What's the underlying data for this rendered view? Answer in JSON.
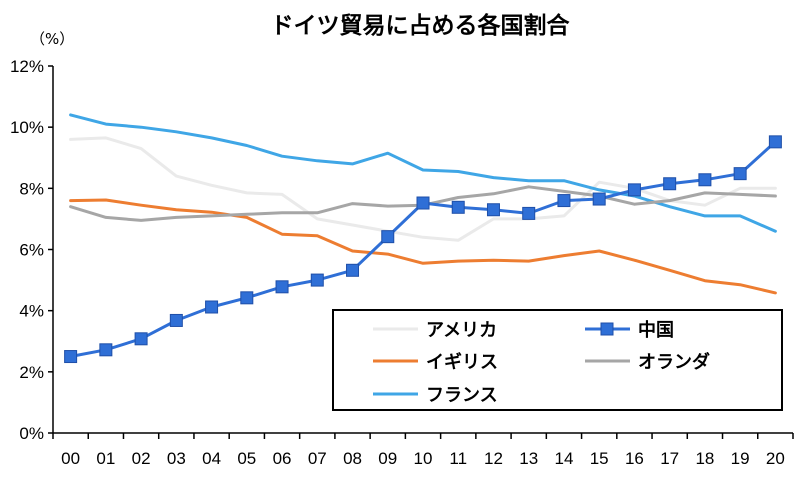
{
  "chart_data": {
    "type": "line",
    "title": "ドイツ貿易に占める各国割合",
    "ylabel": "",
    "xlabel": "",
    "unit_label": "（%）",
    "categories": [
      "00",
      "01",
      "02",
      "03",
      "04",
      "05",
      "06",
      "07",
      "08",
      "09",
      "10",
      "11",
      "12",
      "13",
      "14",
      "15",
      "16",
      "17",
      "18",
      "19",
      "20"
    ],
    "ylim": [
      0,
      12
    ],
    "yticks": [
      0,
      2,
      4,
      6,
      8,
      10,
      12
    ],
    "ytick_labels": [
      "0%",
      "2%",
      "4%",
      "6%",
      "8%",
      "10%",
      "12%"
    ],
    "grid": false,
    "legend_position": "bottom-right",
    "series": [
      {
        "name": "アメリカ",
        "color": "#eaeaea",
        "width": 3,
        "marker": "none",
        "values": [
          9.6,
          9.65,
          9.3,
          8.4,
          8.1,
          7.85,
          7.8,
          7.0,
          6.8,
          6.6,
          6.4,
          6.3,
          7.0,
          7.0,
          7.1,
          8.2,
          8.0,
          7.6,
          7.45,
          8.0,
          8.0
        ]
      },
      {
        "name": "イギリス",
        "color": "#ed7d31",
        "width": 3,
        "marker": "none",
        "values": [
          7.6,
          7.62,
          7.45,
          7.3,
          7.22,
          7.05,
          6.5,
          6.45,
          5.95,
          5.85,
          5.55,
          5.62,
          5.65,
          5.62,
          5.8,
          5.95,
          5.65,
          5.32,
          4.98,
          4.85,
          4.58
        ]
      },
      {
        "name": "フランス",
        "color": "#3fa6e6",
        "width": 3,
        "marker": "none",
        "values": [
          10.4,
          10.1,
          10.0,
          9.85,
          9.65,
          9.4,
          9.05,
          8.9,
          8.8,
          9.15,
          8.6,
          8.55,
          8.35,
          8.25,
          8.25,
          7.95,
          7.75,
          7.4,
          7.1,
          7.1,
          6.6
        ]
      },
      {
        "name": "オランダ",
        "color": "#a6a6a6",
        "width": 3,
        "marker": "none",
        "values": [
          7.4,
          7.05,
          6.95,
          7.05,
          7.1,
          7.15,
          7.2,
          7.2,
          7.5,
          7.42,
          7.45,
          7.7,
          7.82,
          8.05,
          7.9,
          7.75,
          7.48,
          7.6,
          7.85,
          7.8,
          7.75
        ]
      },
      {
        "name": "中国",
        "color": "#2f6fd6",
        "width": 3,
        "marker": "square",
        "values": [
          2.5,
          2.72,
          3.08,
          3.68,
          4.12,
          4.42,
          4.78,
          5.0,
          5.32,
          6.42,
          7.52,
          7.38,
          7.3,
          7.18,
          7.6,
          7.65,
          7.95,
          8.15,
          8.28,
          8.48,
          9.52
        ]
      }
    ],
    "legend_entries": [
      {
        "series": "アメリカ"
      },
      {
        "series": "中国"
      },
      {
        "series": "イギリス"
      },
      {
        "series": "オランダ"
      },
      {
        "series": "フランス"
      }
    ]
  }
}
